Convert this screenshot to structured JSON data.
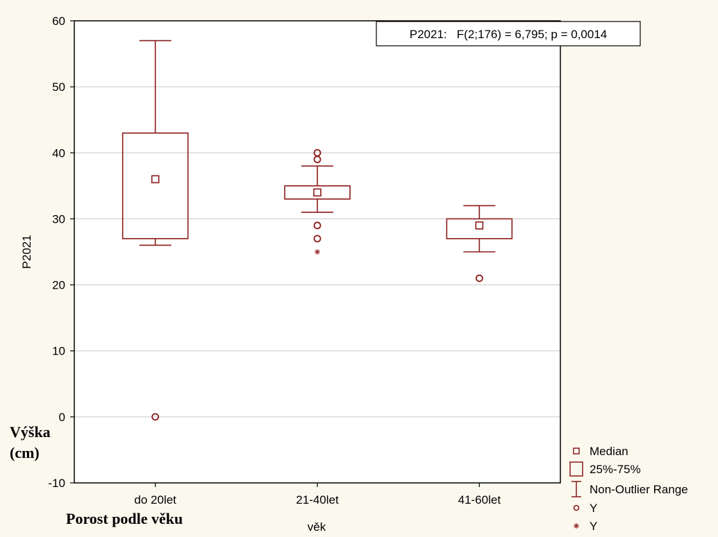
{
  "chart_data": {
    "type": "box",
    "title": "P2021:   F(2;176) = 6,795; p = 0,0014",
    "xlabel": "věk",
    "ylabel": "P2021",
    "ylim": [
      -10,
      60
    ],
    "yticks": [
      -10,
      0,
      10,
      20,
      30,
      40,
      50,
      60
    ],
    "grid": true,
    "legend_position": "bottom-right, outside plot",
    "colors": {
      "series": "#8b1a1a",
      "grid": "#c8c8c8",
      "background": "#fbf8ee",
      "axes": "#000000"
    },
    "categories": [
      "do 20let",
      "21-40let",
      "41-60let"
    ],
    "boxes": [
      {
        "category": "do 20let",
        "whisker_low": 26,
        "q1": 27,
        "median": 36,
        "q3": 43,
        "whisker_high": 57,
        "outliers": [
          0
        ],
        "extremes": []
      },
      {
        "category": "21-40let",
        "whisker_low": 31,
        "q1": 33,
        "median": 34,
        "q3": 35,
        "whisker_high": 38,
        "outliers": [
          39,
          40,
          29,
          27
        ],
        "extremes": [
          25
        ]
      },
      {
        "category": "41-60let",
        "whisker_low": 25,
        "q1": 27,
        "median": 29,
        "q3": 30,
        "whisker_high": 32,
        "outliers": [
          21
        ],
        "extremes": []
      }
    ],
    "legend": [
      {
        "symbol": "median-square-icon",
        "label": "Median"
      },
      {
        "symbol": "box-icon",
        "label": "25%-75%"
      },
      {
        "symbol": "whisker-icon",
        "label": "Non-Outlier Range"
      },
      {
        "symbol": "circle-icon",
        "label": "Y"
      },
      {
        "symbol": "asterisk-icon",
        "label": "Y"
      }
    ]
  },
  "overlay": {
    "y_note_line1": "Výška",
    "y_note_line2": "(cm)",
    "x_note": "Porost podle věku"
  }
}
